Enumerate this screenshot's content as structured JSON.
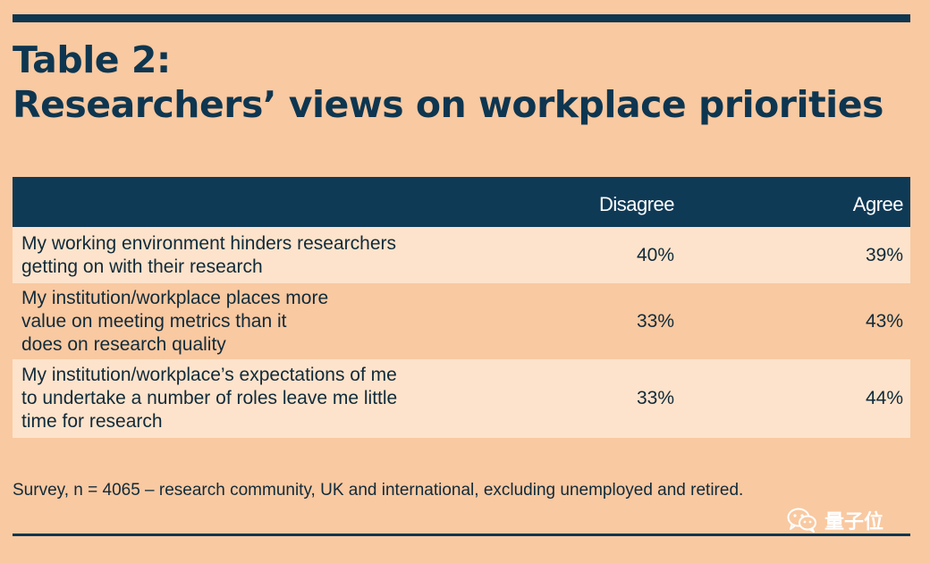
{
  "title": {
    "line1": "Table 2:",
    "line2": "Researchers’ views on workplace priorities"
  },
  "chart_data": {
    "type": "table",
    "title": "Table 2: Researchers’ views on workplace priorities",
    "columns": [
      "",
      "Disagree",
      "Agree"
    ],
    "rows": [
      {
        "statement": "My working environment hinders researchers\ngetting on with their research",
        "disagree": "40%",
        "agree": "39%"
      },
      {
        "statement": "My institution/workplace places more\nvalue on meeting metrics than it\ndoes on research quality",
        "disagree": "33%",
        "agree": "43%"
      },
      {
        "statement": "My institution/workplace’s expectations of me\nto undertake a number of roles leave me little\ntime for research",
        "disagree": "33%",
        "agree": "44%"
      }
    ]
  },
  "footnote": "Survey, n = 4065 – research community, UK and international, excluding unemployed and retired.",
  "watermark": {
    "text": "量子位",
    "icon": "wechat-icon"
  },
  "colors": {
    "background": "#f9c9a1",
    "header": "#0f3a56",
    "row_light": "#fde3cb",
    "title": "#0e3650"
  }
}
